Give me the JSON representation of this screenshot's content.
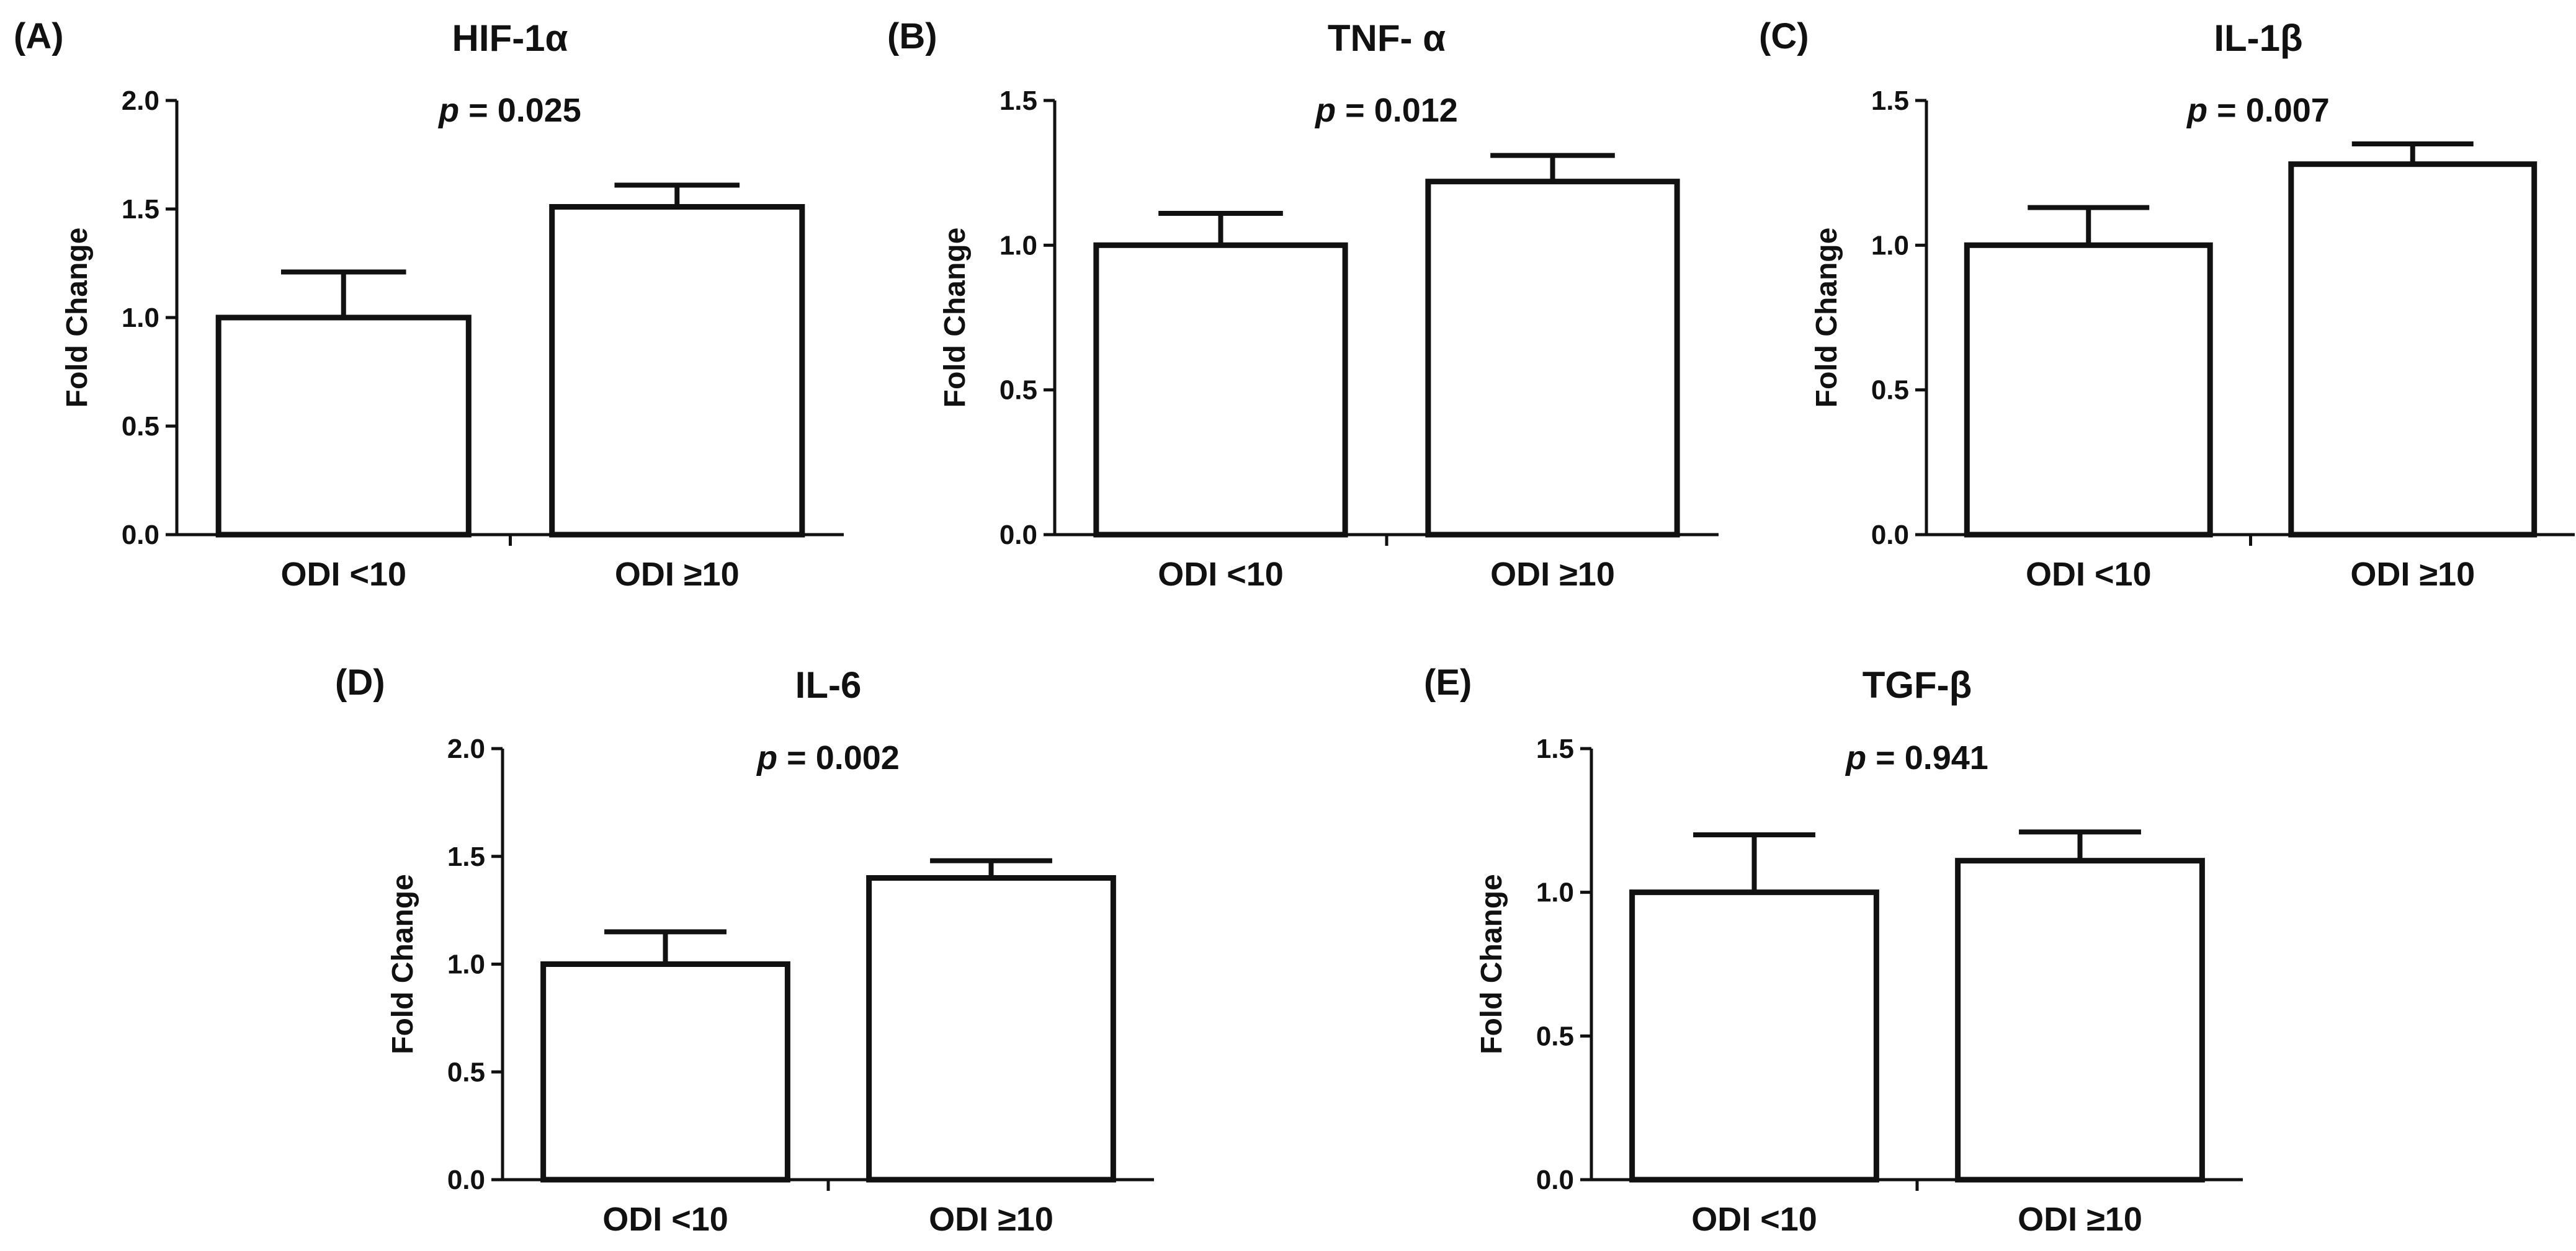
{
  "chart_data": [
    {
      "type": "bar",
      "panel_label": "(A)",
      "title": "HIF-1α",
      "p_prefix": "p",
      "p_value": "= 0.025",
      "ylabel": "Fold Change",
      "xlabel": "",
      "categories": [
        "ODI <10",
        "ODI ≥10"
      ],
      "values": [
        1.0,
        1.51
      ],
      "errors": [
        0.21,
        0.1
      ],
      "ylim": [
        0,
        2.0
      ],
      "yticks": [
        0.0,
        0.5,
        1.0,
        1.5,
        2.0
      ],
      "ytick_labels": [
        "0.0",
        "0.5",
        "1.0",
        "1.5",
        "2.0"
      ],
      "grid": false
    },
    {
      "type": "bar",
      "panel_label": "(B)",
      "title": "TNF- α",
      "p_prefix": "p",
      "p_value": "= 0.012",
      "ylabel": "Fold Change",
      "xlabel": "",
      "categories": [
        "ODI <10",
        "ODI ≥10"
      ],
      "values": [
        1.0,
        1.22
      ],
      "errors": [
        0.11,
        0.09
      ],
      "ylim": [
        0,
        1.5
      ],
      "yticks": [
        0.0,
        0.5,
        1.0,
        1.5
      ],
      "ytick_labels": [
        "0.0",
        "0.5",
        "1.0",
        "1.5"
      ],
      "grid": false
    },
    {
      "type": "bar",
      "panel_label": "(C)",
      "title": "IL-1β",
      "p_prefix": "p",
      "p_value": "= 0.007",
      "ylabel": "Fold Change",
      "xlabel": "",
      "categories": [
        "ODI <10",
        "ODI ≥10"
      ],
      "values": [
        1.0,
        1.28
      ],
      "errors": [
        0.13,
        0.07
      ],
      "ylim": [
        0,
        1.5
      ],
      "yticks": [
        0.0,
        0.5,
        1.0,
        1.5
      ],
      "ytick_labels": [
        "0.0",
        "0.5",
        "1.0",
        "1.5"
      ],
      "grid": false
    },
    {
      "type": "bar",
      "panel_label": "(D)",
      "title": "IL-6",
      "p_prefix": "p",
      "p_value": "= 0.002",
      "ylabel": "Fold Change",
      "xlabel": "",
      "categories": [
        "ODI <10",
        "ODI ≥10"
      ],
      "values": [
        1.0,
        1.4
      ],
      "errors": [
        0.15,
        0.08
      ],
      "ylim": [
        0,
        2.0
      ],
      "yticks": [
        0.0,
        0.5,
        1.0,
        1.5,
        2.0
      ],
      "ytick_labels": [
        "0.0",
        "0.5",
        "1.0",
        "1.5",
        "2.0"
      ],
      "grid": false
    },
    {
      "type": "bar",
      "panel_label": "(E)",
      "title": "TGF-β",
      "p_prefix": "p",
      "p_value": "= 0.941",
      "ylabel": "Fold Change",
      "xlabel": "",
      "categories": [
        "ODI <10",
        "ODI ≥10"
      ],
      "values": [
        1.0,
        1.11
      ],
      "errors": [
        0.2,
        0.1
      ],
      "ylim": [
        0,
        1.5
      ],
      "yticks": [
        0.0,
        0.5,
        1.0,
        1.5
      ],
      "ytick_labels": [
        "0.0",
        "0.5",
        "1.0",
        "1.5"
      ],
      "grid": false
    }
  ]
}
